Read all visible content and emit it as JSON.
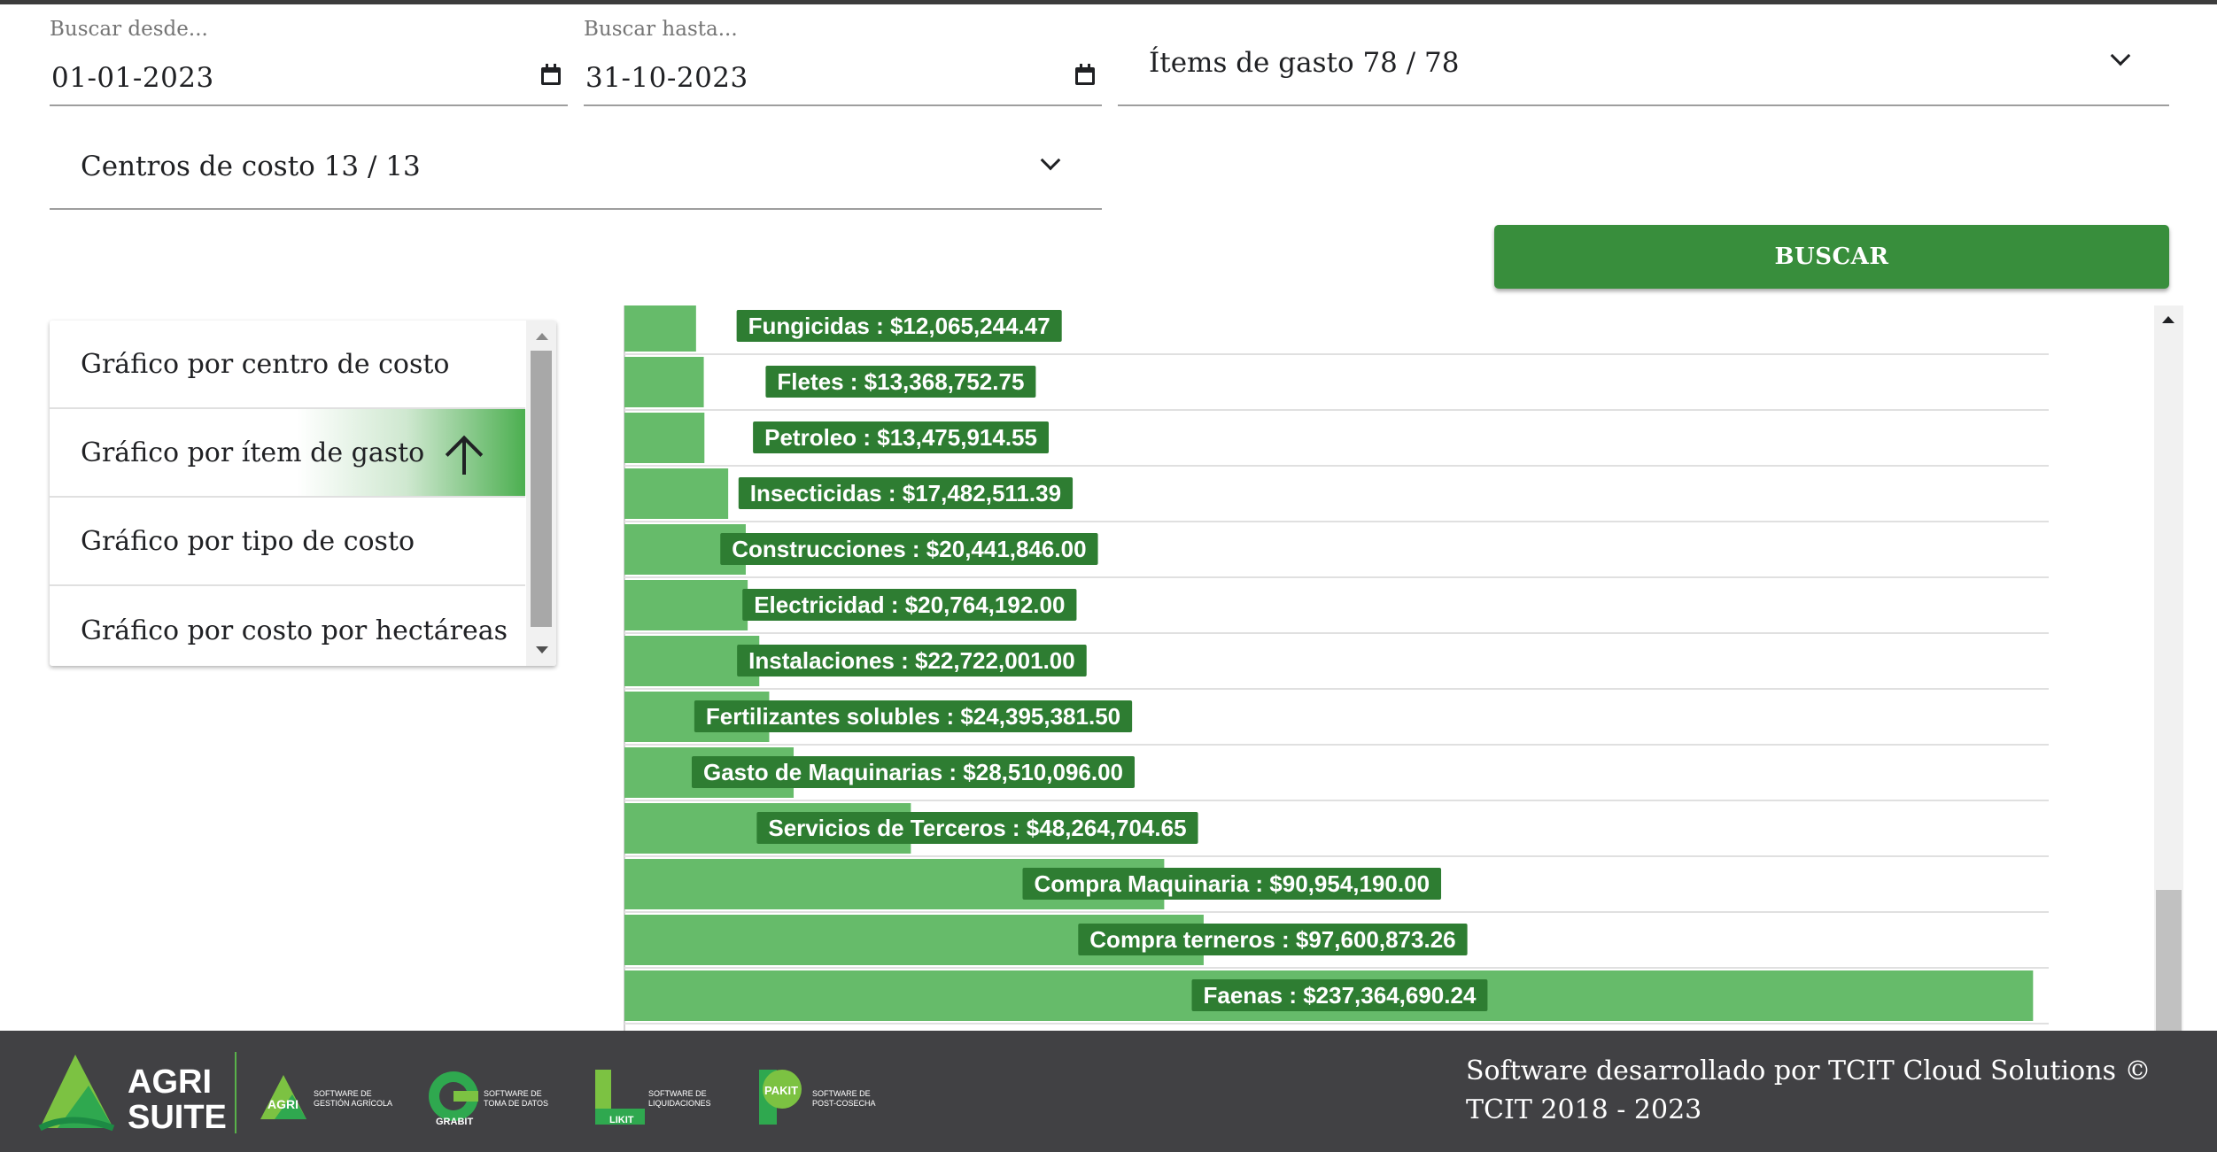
{
  "filters": {
    "date_from": {
      "label": "Buscar desde...",
      "value": "01-01-2023"
    },
    "date_to": {
      "label": "Buscar hasta...",
      "value": "31-10-2023"
    },
    "expense_items": {
      "value": "Ítems de gasto 78 / 78"
    },
    "cost_centers": {
      "value": "Centros de costo 13 / 13"
    },
    "search_button": "BUSCAR"
  },
  "menu": {
    "items": [
      {
        "label": "Gráfico por centro de costo"
      },
      {
        "label": "Gráfico por ítem de gasto",
        "active": true,
        "icon": "arrow-up-icon"
      },
      {
        "label": "Gráfico por tipo de costo"
      },
      {
        "label": "Gráfico por costo por hectáreas"
      }
    ]
  },
  "chart_data": {
    "type": "bar",
    "orientation": "horizontal",
    "categories": [
      "Fungicidas",
      "Fletes",
      "Petroleo",
      "Insecticidas",
      "Construcciones",
      "Electricidad",
      "Instalaciones",
      "Fertilizantes solubles",
      "Gasto de Maquinarias",
      "Servicios de Terceros",
      "Compra Maquinaria",
      "Compra terneros",
      "Faenas"
    ],
    "values": [
      12065244.47,
      13368752.75,
      13475914.55,
      17482511.39,
      20441846.0,
      20764192.0,
      22722001.0,
      24395381.5,
      28510096.0,
      48264704.65,
      90954190.0,
      97600873.26,
      237364690.24
    ],
    "labels": [
      "Fungicidas : $12,065,244.47",
      "Fletes : $13,368,752.75",
      "Petroleo : $13,475,914.55",
      "Insecticidas : $17,482,511.39",
      "Construcciones : $20,441,846.00",
      "Electricidad : $20,764,192.00",
      "Instalaciones : $22,722,001.00",
      "Fertilizantes solubles : $24,395,381.50",
      "Gasto de Maquinarias : $28,510,096.00",
      "Servicios de Terceros : $48,264,704.65",
      "Compra Maquinaria : $90,954,190.00",
      "Compra terneros : $97,600,873.26",
      "Faenas : $237,364,690.24"
    ],
    "xlim": [
      0,
      240000000
    ],
    "grid": true,
    "colors": {
      "bar": "#66bb6a",
      "label_bg": "#2e7d32",
      "label_text": "#ffffff",
      "grid": "#e0e0e0"
    }
  },
  "footer": {
    "copyright": "Software desarrollado por TCIT Cloud Solutions © TCIT 2018 - 2023",
    "logos": [
      {
        "name": "AGRI SUITE",
        "line1": "AGRI",
        "line2": "SUITE"
      },
      {
        "name": "AGRI",
        "caption1": "SOFTWARE DE",
        "caption2": "GESTIÓN AGRÍCOLA"
      },
      {
        "name": "GRABIT",
        "caption1": "SOFTWARE DE",
        "caption2": "TOMA DE DATOS"
      },
      {
        "name": "LIKIT",
        "caption1": "SOFTWARE DE",
        "caption2": "LIQUIDACIONES"
      },
      {
        "name": "PAKIT",
        "caption1": "SOFTWARE DE",
        "caption2": "POST-COSECHA"
      }
    ]
  }
}
